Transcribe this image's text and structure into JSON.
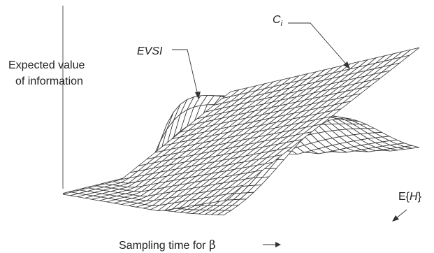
{
  "figure": {
    "y_label_line1": "Expected value",
    "y_label_line2": "of information",
    "x_label": "Sampling time for",
    "x_label_symbol": "β",
    "depth_label_prefix": "E{",
    "depth_label_var": "H",
    "depth_label_suffix": "}",
    "evsi_label": "EVSI",
    "cost_label_main": "C",
    "cost_label_sub": "i"
  }
}
